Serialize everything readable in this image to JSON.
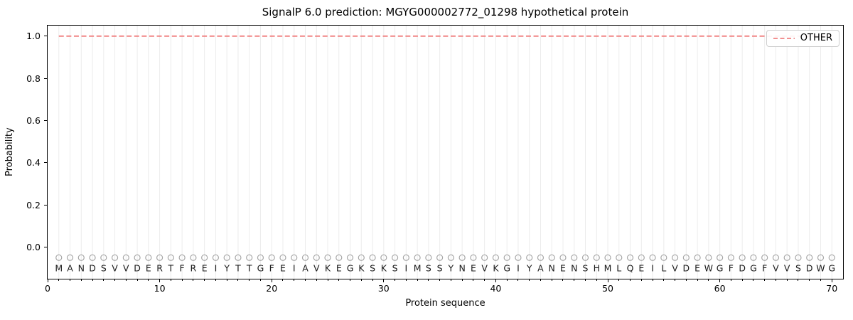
{
  "chart_data": {
    "type": "line",
    "title": "SignalP 6.0 prediction: MGYG000002772_01298 hypothetical protein",
    "xlabel": "Protein sequence",
    "ylabel": "Probability",
    "xlim": [
      0,
      71
    ],
    "ylim": [
      -0.15,
      1.05
    ],
    "x_major_ticks": [
      0,
      10,
      20,
      30,
      40,
      50,
      60,
      70
    ],
    "y_ticks": [
      "0.0",
      "0.2",
      "0.4",
      "0.6",
      "0.8",
      "1.0"
    ],
    "grid": {
      "vertical_per_residue": true,
      "horizontal": false,
      "color": "#ececec"
    },
    "legend": {
      "position": "upper-right",
      "entries": [
        {
          "label": "OTHER",
          "line_style": "dashed",
          "color": "#f08080"
        }
      ]
    },
    "series": [
      {
        "name": "OTHER",
        "style": "dashed",
        "color": "#f08080",
        "x": [
          1,
          2,
          3,
          4,
          5,
          6,
          7,
          8,
          9,
          10,
          11,
          12,
          13,
          14,
          15,
          16,
          17,
          18,
          19,
          20,
          21,
          22,
          23,
          24,
          25,
          26,
          27,
          28,
          29,
          30,
          31,
          32,
          33,
          34,
          35,
          36,
          37,
          38,
          39,
          40,
          41,
          42,
          43,
          44,
          45,
          46,
          47,
          48,
          49,
          50,
          51,
          52,
          53,
          54,
          55,
          56,
          57,
          58,
          59,
          60,
          61,
          62,
          63,
          64,
          65,
          66,
          67,
          68,
          69,
          70
        ],
        "y": [
          1.0,
          1.0,
          1.0,
          1.0,
          1.0,
          1.0,
          1.0,
          1.0,
          1.0,
          1.0,
          1.0,
          1.0,
          1.0,
          1.0,
          1.0,
          1.0,
          1.0,
          1.0,
          1.0,
          1.0,
          1.0,
          1.0,
          1.0,
          1.0,
          1.0,
          1.0,
          1.0,
          1.0,
          1.0,
          1.0,
          1.0,
          1.0,
          1.0,
          1.0,
          1.0,
          1.0,
          1.0,
          1.0,
          1.0,
          1.0,
          1.0,
          1.0,
          1.0,
          1.0,
          1.0,
          1.0,
          1.0,
          1.0,
          1.0,
          1.0,
          1.0,
          1.0,
          1.0,
          1.0,
          1.0,
          1.0,
          1.0,
          1.0,
          1.0,
          1.0,
          1.0,
          1.0,
          1.0,
          1.0,
          1.0,
          1.0,
          1.0,
          1.0,
          1.0,
          1.0
        ]
      }
    ],
    "sequence": "MANDSVVDERTFREIYTTGFEIAVKEGKSKSIMSSYNEVKGIYANENSHMLQEILVDEWGFDGFVVSDWG",
    "sequence_y": -0.1,
    "sequence_color": "#1a1a1a",
    "residue_markers": {
      "glyph": "circle-outline",
      "y": -0.05,
      "color": "#a6a6a6"
    }
  }
}
